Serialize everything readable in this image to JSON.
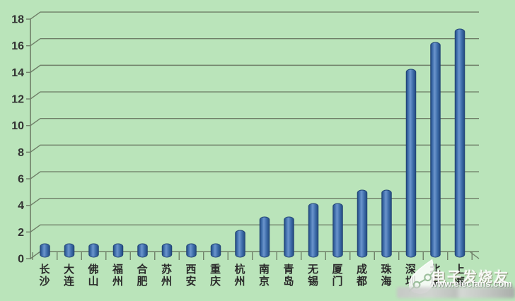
{
  "chart_data": {
    "type": "bar",
    "style": "3d-cylinder",
    "title": "",
    "xlabel": "",
    "ylabel": "",
    "categories": [
      "长沙",
      "大连",
      "佛山",
      "福州",
      "合肥",
      "苏州",
      "西安",
      "重庆",
      "杭州",
      "南京",
      "青岛",
      "无锡",
      "厦门",
      "成都",
      "珠海",
      "深圳",
      "北京",
      "上海"
    ],
    "values": [
      1,
      1,
      1,
      1,
      1,
      1,
      1,
      1,
      2,
      3,
      3,
      4,
      4,
      5,
      5,
      14,
      16,
      17
    ],
    "ylim": [
      0,
      18
    ],
    "yticks": [
      0,
      2,
      4,
      6,
      8,
      10,
      12,
      14,
      16,
      18
    ],
    "grid": "horizontal",
    "legend": "none",
    "colors": {
      "background": "#bae4ba",
      "grid": "#6f7f68",
      "text": "#333333",
      "bar_dark": "#24497e",
      "bar_main": "#3c6ba8",
      "bar_light": "#6b95cd",
      "bar_edge": "#1f4273"
    }
  },
  "watermark": {
    "brand": "电子发烧友",
    "url": "www.elecfans.com",
    "logo": "elecfans-leaf-logo"
  }
}
